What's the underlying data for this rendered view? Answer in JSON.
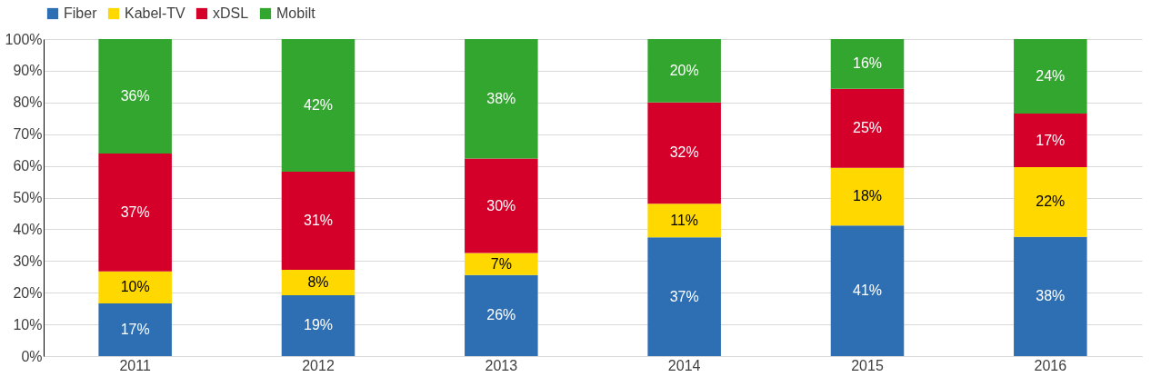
{
  "chart_data": {
    "type": "bar",
    "stacked": true,
    "categories": [
      "2011",
      "2012",
      "2013",
      "2014",
      "2015",
      "2016"
    ],
    "series": [
      {
        "name": "Fiber",
        "color": "#2e6fb4",
        "values": [
          16.6,
          19.2,
          25.6,
          37.5,
          41.2,
          37.6
        ],
        "value_labels": [
          "17%",
          "19%",
          "26%",
          "37%",
          "41%",
          "38%"
        ]
      },
      {
        "name": "Kabel-TV",
        "color": "#ffd800",
        "values": [
          10.1,
          8.0,
          6.9,
          10.6,
          18.2,
          22.0
        ],
        "value_labels": [
          "10%",
          "8%",
          "7%",
          "11%",
          "18%",
          "22%"
        ]
      },
      {
        "name": "xDSL",
        "color": "#d5002a",
        "values": [
          37.2,
          31.0,
          29.8,
          31.9,
          24.9,
          16.9
        ],
        "value_labels": [
          "37%",
          "31%",
          "30%",
          "32%",
          "25%",
          "17%"
        ]
      },
      {
        "name": "Mobilt",
        "color": "#33a62f",
        "values": [
          36.1,
          41.8,
          37.7,
          20.0,
          15.7,
          23.5
        ],
        "value_labels": [
          "36%",
          "42%",
          "38%",
          "20%",
          "16%",
          "24%"
        ]
      }
    ],
    "ylim": [
      0,
      100
    ],
    "yticks": [
      {
        "value": 0,
        "label": "0%"
      },
      {
        "value": 10,
        "label": "10%"
      },
      {
        "value": 20,
        "label": "20%"
      },
      {
        "value": 30,
        "label": "30%"
      },
      {
        "value": 40,
        "label": "40%"
      },
      {
        "value": 50,
        "label": "50%"
      },
      {
        "value": 60,
        "label": "60%"
      },
      {
        "value": 70,
        "label": "70%"
      },
      {
        "value": 80,
        "label": "80%"
      },
      {
        "value": 90,
        "label": "90%"
      },
      {
        "value": 100,
        "label": "100%"
      }
    ],
    "grid": "y",
    "legend": "top"
  }
}
